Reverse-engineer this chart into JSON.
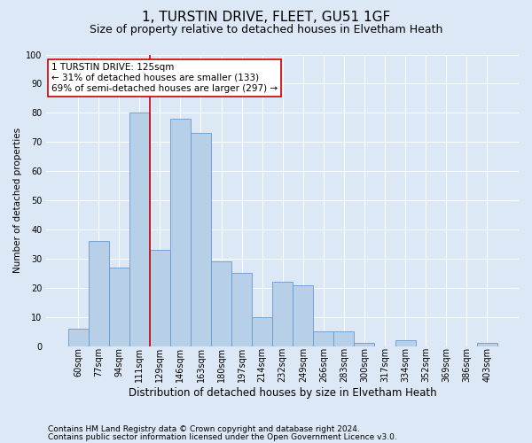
{
  "title1": "1, TURSTIN DRIVE, FLEET, GU51 1GF",
  "title2": "Size of property relative to detached houses in Elvetham Heath",
  "xlabel": "Distribution of detached houses by size in Elvetham Heath",
  "ylabel": "Number of detached properties",
  "categories": [
    "60sqm",
    "77sqm",
    "94sqm",
    "111sqm",
    "129sqm",
    "146sqm",
    "163sqm",
    "180sqm",
    "197sqm",
    "214sqm",
    "232sqm",
    "249sqm",
    "266sqm",
    "283sqm",
    "300sqm",
    "317sqm",
    "334sqm",
    "352sqm",
    "369sqm",
    "386sqm",
    "403sqm"
  ],
  "values": [
    6,
    36,
    27,
    80,
    33,
    78,
    73,
    29,
    25,
    10,
    22,
    21,
    5,
    5,
    1,
    0,
    2,
    0,
    0,
    0,
    1
  ],
  "bar_color": "#b8cfe8",
  "bar_edge_color": "#6699cc",
  "vline_x": 3.5,
  "vline_color": "#cc0000",
  "annotation_text": "1 TURSTIN DRIVE: 125sqm\n← 31% of detached houses are smaller (133)\n69% of semi-detached houses are larger (297) →",
  "annotation_box_color": "#ffffff",
  "annotation_border_color": "#cc0000",
  "ylim": [
    0,
    100
  ],
  "yticks": [
    0,
    10,
    20,
    30,
    40,
    50,
    60,
    70,
    80,
    90,
    100
  ],
  "background_color": "#dce8f5",
  "footer1": "Contains HM Land Registry data © Crown copyright and database right 2024.",
  "footer2": "Contains public sector information licensed under the Open Government Licence v3.0.",
  "title1_fontsize": 11,
  "title2_fontsize": 9,
  "xlabel_fontsize": 8.5,
  "ylabel_fontsize": 7.5,
  "tick_fontsize": 7,
  "annotation_fontsize": 7.5,
  "footer_fontsize": 6.5
}
